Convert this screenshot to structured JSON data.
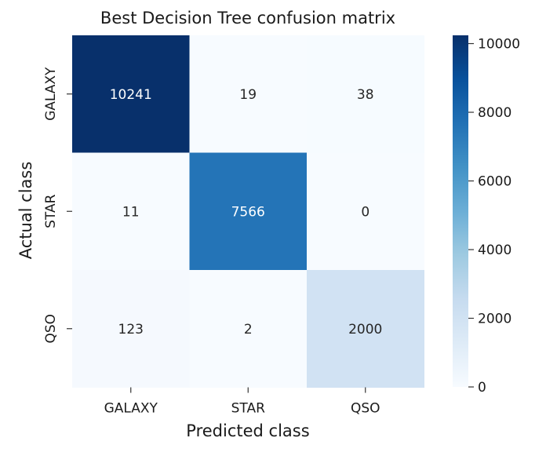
{
  "chart_data": {
    "type": "heatmap",
    "title": "Best Decision Tree confusion matrix",
    "xlabel": "Predicted class",
    "ylabel": "Actual class",
    "x_categories": [
      "GALAXY",
      "STAR",
      "QSO"
    ],
    "y_categories": [
      "GALAXY",
      "STAR",
      "QSO"
    ],
    "values": [
      [
        10241,
        19,
        38
      ],
      [
        11,
        7566,
        0
      ],
      [
        123,
        2,
        2000
      ]
    ],
    "colormap": "Blues",
    "colorbar": {
      "min": 0,
      "max": 10241,
      "ticks": [
        0,
        2000,
        4000,
        6000,
        8000,
        10000
      ]
    },
    "colors": {
      "low": "#f7fbff",
      "high": "#08306b"
    }
  }
}
